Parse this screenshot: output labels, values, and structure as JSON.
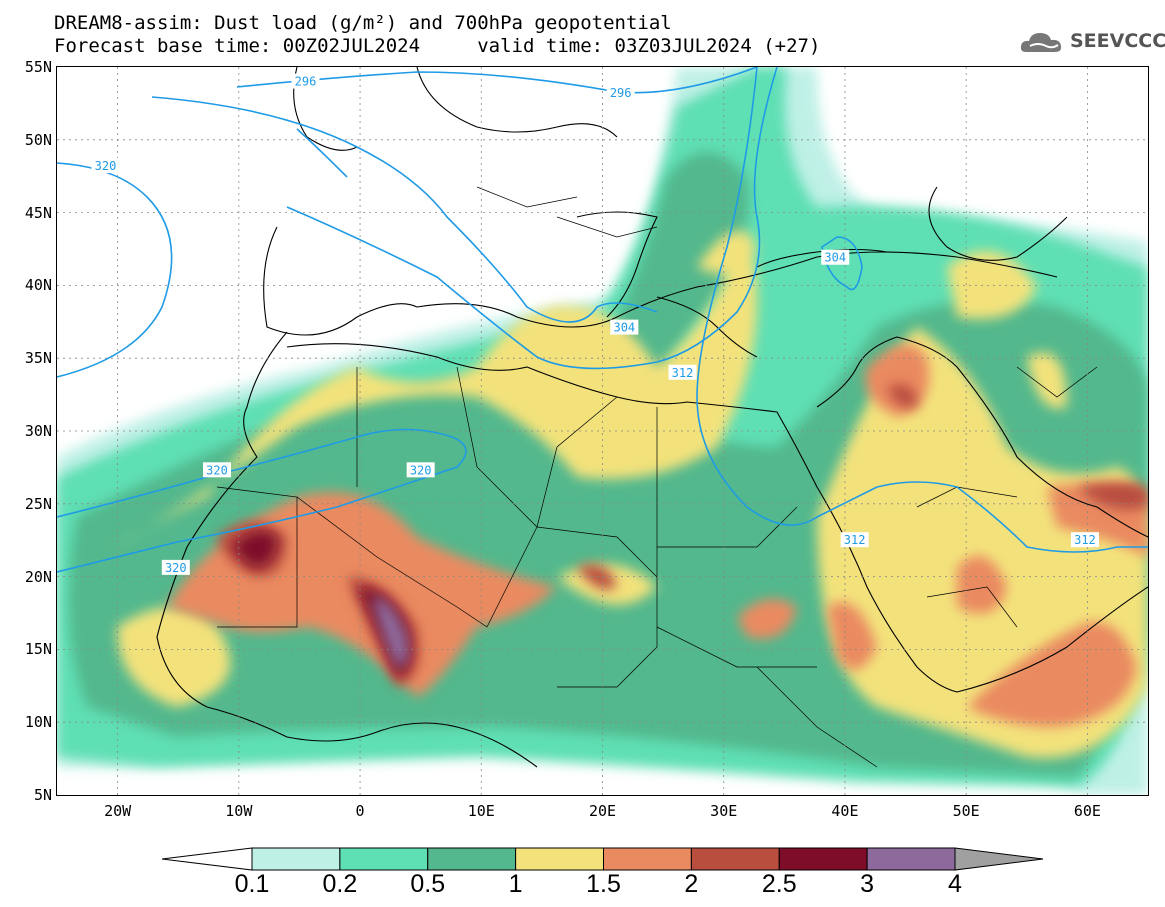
{
  "title": {
    "line1": "DREAM8-assim: Dust load (g/m²) and 700hPa geopotential",
    "line2": "Forecast base time: 00Z02JUL2024     valid time: 03Z03JUL2024 (+27)"
  },
  "logo": {
    "text": "SEEVCCC",
    "icon": "cloud-icon"
  },
  "axes": {
    "lat_labels": [
      "55N",
      "50N",
      "45N",
      "40N",
      "35N",
      "30N",
      "25N",
      "20N",
      "15N",
      "10N",
      "5N"
    ],
    "lon_labels": [
      "20W",
      "10W",
      "0",
      "10E",
      "20E",
      "30E",
      "40E",
      "50E",
      "60E"
    ],
    "lat_range": [
      5,
      55
    ],
    "lon_range": [
      -25,
      65
    ]
  },
  "contour_labels": [
    {
      "text": "296",
      "lon": -4.5,
      "lat": 54.0
    },
    {
      "text": "296",
      "lon": 21.5,
      "lat": 53.2
    },
    {
      "text": "320",
      "lon": -21.0,
      "lat": 48.2
    },
    {
      "text": "304",
      "lon": 39.2,
      "lat": 41.9
    },
    {
      "text": "304",
      "lon": 21.8,
      "lat": 37.1
    },
    {
      "text": "312",
      "lon": 26.6,
      "lat": 34.0
    },
    {
      "text": "320",
      "lon": -11.8,
      "lat": 27.3
    },
    {
      "text": "320",
      "lon": 5.0,
      "lat": 27.3
    },
    {
      "text": "320",
      "lon": -15.2,
      "lat": 20.6
    },
    {
      "text": "312",
      "lon": 40.8,
      "lat": 22.5
    },
    {
      "text": "312",
      "lon": 59.8,
      "lat": 22.5
    }
  ],
  "colorbar": {
    "ticks": [
      "0.1",
      "0.2",
      "0.5",
      "1",
      "1.5",
      "2",
      "2.5",
      "3",
      "4"
    ],
    "colors": [
      "#bff0e6",
      "#5fdfb4",
      "#53b88d",
      "#f3e27b",
      "#ea8a61",
      "#b94e3f",
      "#7e0d2a",
      "#8d6a9b"
    ],
    "under_color": "#ffffff",
    "over_color": "#a0a0a0"
  },
  "contour_color": "#1f9be6"
}
